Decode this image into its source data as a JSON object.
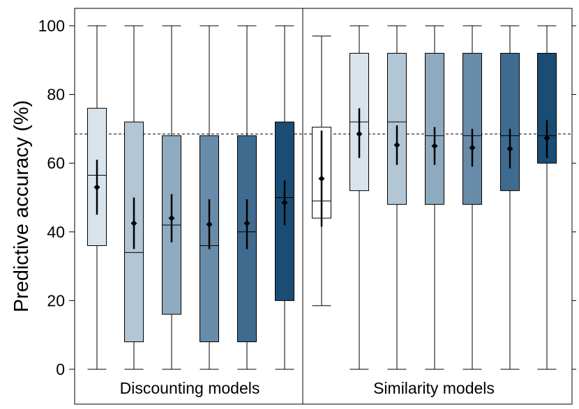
{
  "chart_data": {
    "type": "box",
    "ylabel": "Predictive accuracy (%)",
    "ylim": [
      0,
      100
    ],
    "yticks": [
      "0",
      "20",
      "40",
      "60",
      "80",
      "100"
    ],
    "reference_line": 68.5,
    "panels": [
      {
        "label": "Discounting models",
        "boxes": [
          {
            "whisker_low": 0,
            "q1": 36,
            "median": 56.5,
            "q3": 76,
            "whisker_high": 100,
            "mean": 53,
            "ci": [
              45,
              61
            ],
            "color": "#d8e3eb"
          },
          {
            "whisker_low": 0,
            "q1": 8,
            "median": 34,
            "q3": 72,
            "whisker_high": 100,
            "mean": 42.5,
            "ci": [
              35,
              50
            ],
            "color": "#b2c6d5"
          },
          {
            "whisker_low": 0,
            "q1": 16,
            "median": 42,
            "q3": 68,
            "whisker_high": 100,
            "mean": 44,
            "ci": [
              37,
              51
            ],
            "color": "#8eaabf"
          },
          {
            "whisker_low": 0,
            "q1": 8,
            "median": 36,
            "q3": 68,
            "whisker_high": 100,
            "mean": 42.2,
            "ci": [
              35,
              49.5
            ],
            "color": "#678ba8"
          },
          {
            "whisker_low": 0,
            "q1": 8,
            "median": 40,
            "q3": 68,
            "whisker_high": 100,
            "mean": 42.5,
            "ci": [
              35,
              49.5
            ],
            "color": "#3f6b8f"
          },
          {
            "whisker_low": 0,
            "q1": 20,
            "median": 50,
            "q3": 72,
            "whisker_high": 100,
            "mean": 48.5,
            "ci": [
              42,
              55
            ],
            "color": "#1a4c74"
          }
        ]
      },
      {
        "label": "Similarity models",
        "boxes": [
          {
            "whisker_low": 18.5,
            "q1": 44,
            "median": 49,
            "q3": 70.5,
            "whisker_high": 97,
            "mean": 55.5,
            "ci": [
              41.5,
              69.5
            ],
            "color": "#ffffff"
          },
          {
            "whisker_low": 0,
            "q1": 52,
            "median": 72,
            "q3": 92,
            "whisker_high": 100,
            "mean": 68.5,
            "ci": [
              61.5,
              76
            ],
            "color": "#d8e3eb"
          },
          {
            "whisker_low": 0,
            "q1": 48,
            "median": 72,
            "q3": 92,
            "whisker_high": 100,
            "mean": 65.3,
            "ci": [
              59.5,
              71
            ],
            "color": "#b2c6d5"
          },
          {
            "whisker_low": 0,
            "q1": 48,
            "median": 68,
            "q3": 92,
            "whisker_high": 100,
            "mean": 65,
            "ci": [
              59.5,
              70.5
            ],
            "color": "#8eaabf"
          },
          {
            "whisker_low": 0,
            "q1": 48,
            "median": 68,
            "q3": 92,
            "whisker_high": 100,
            "mean": 64.5,
            "ci": [
              59,
              70
            ],
            "color": "#678ba8"
          },
          {
            "whisker_low": 0,
            "q1": 52,
            "median": 68,
            "q3": 92,
            "whisker_high": 100,
            "mean": 64.2,
            "ci": [
              58.5,
              70
            ],
            "color": "#3f6b8f"
          },
          {
            "whisker_low": 0,
            "q1": 60,
            "median": 68,
            "q3": 92,
            "whisker_high": 100,
            "mean": 67.3,
            "ci": [
              61.5,
              72.5
            ],
            "color": "#1a4c74"
          }
        ]
      }
    ]
  }
}
